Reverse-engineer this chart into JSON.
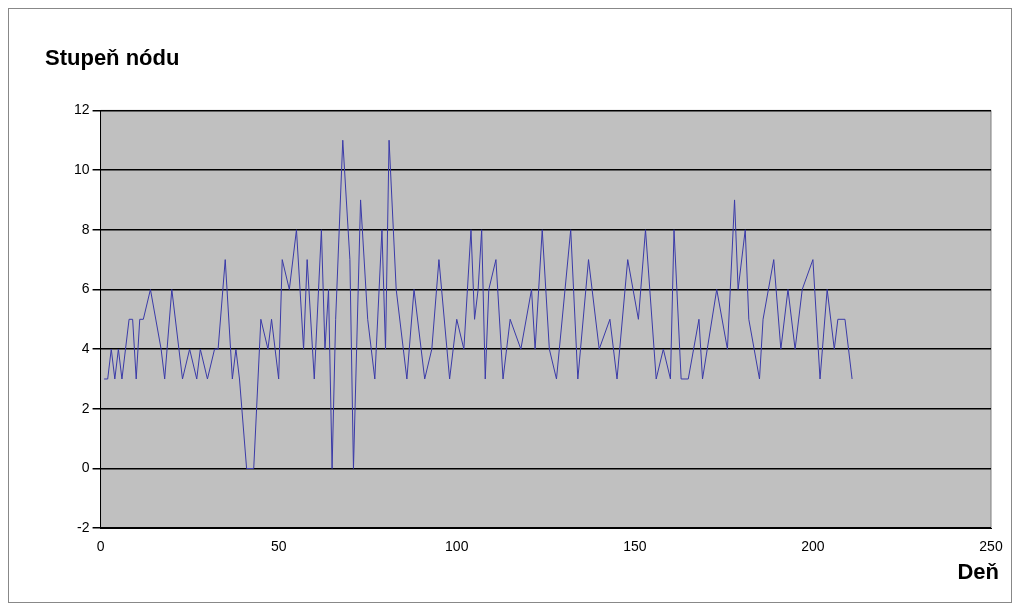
{
  "chart_data": {
    "type": "line",
    "ylabel": "Stupeň nódu",
    "xlabel": "Deň",
    "series": [
      {
        "color": "#3a3aa8",
        "x": [
          1,
          2,
          3,
          4,
          5,
          6,
          7,
          8,
          9,
          10,
          11,
          12,
          14,
          17,
          18,
          20,
          23,
          25,
          27,
          28,
          30,
          32,
          33,
          35,
          37,
          38,
          39,
          41,
          43,
          45,
          47,
          48,
          50,
          51,
          53,
          55,
          57,
          58,
          60,
          62,
          63,
          64,
          65,
          66,
          68,
          70,
          71,
          73,
          75,
          77,
          79,
          80,
          81,
          83,
          86,
          88,
          91,
          93,
          95,
          98,
          100,
          102,
          104,
          105,
          106,
          107,
          108,
          109,
          111,
          113,
          115,
          118,
          121,
          122,
          124,
          126,
          128,
          132,
          134,
          137,
          140,
          143,
          145,
          148,
          151,
          153,
          156,
          158,
          160,
          161,
          163,
          165,
          168,
          169,
          173,
          176,
          178,
          179,
          181,
          182,
          185,
          186,
          189,
          191,
          193,
          195,
          197,
          200,
          202,
          204,
          206,
          207,
          209,
          211
        ],
        "values": [
          3,
          3,
          4,
          3,
          4,
          3,
          4,
          5,
          5,
          3,
          5,
          5,
          6,
          4,
          3,
          6,
          3,
          4,
          3,
          4,
          3,
          4,
          4,
          7,
          3,
          4,
          3,
          0,
          0,
          5,
          4,
          5,
          3,
          7,
          6,
          8,
          4,
          7,
          3,
          8,
          4,
          6,
          0,
          5,
          11,
          7,
          0,
          9,
          5,
          3,
          8,
          4,
          11,
          6,
          3,
          6,
          3,
          4,
          7,
          3,
          5,
          4,
          8,
          5,
          6,
          8,
          3,
          6,
          7,
          3,
          5,
          4,
          6,
          4,
          8,
          4,
          3,
          8,
          3,
          7,
          4,
          5,
          3,
          7,
          5,
          8,
          3,
          4,
          3,
          8,
          3,
          3,
          5,
          3,
          6,
          4,
          9,
          6,
          8,
          5,
          3,
          5,
          7,
          4,
          6,
          4,
          6,
          7,
          3,
          6,
          4,
          5,
          5,
          3
        ]
      }
    ],
    "xlim": [
      0,
      250
    ],
    "xticks": [
      0,
      50,
      100,
      150,
      200,
      250
    ],
    "ylim": [
      -2,
      12
    ],
    "yticks": [
      -2,
      0,
      2,
      4,
      6,
      8,
      10,
      12
    ],
    "grid": "y",
    "legend": false,
    "marker": "none",
    "line_style": "solid"
  }
}
